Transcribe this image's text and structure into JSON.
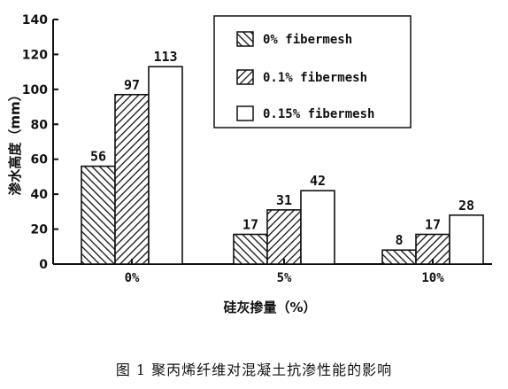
{
  "chart_data": {
    "type": "bar",
    "categories": [
      "0%",
      "5%",
      "10%"
    ],
    "series": [
      {
        "name": "0% fibermesh",
        "values": [
          56,
          17,
          8
        ],
        "pattern": "back-hatch"
      },
      {
        "name": "0.1% fibermesh",
        "values": [
          97,
          31,
          17
        ],
        "pattern": "forward-hatch"
      },
      {
        "name": "0.15% fibermesh",
        "values": [
          113,
          42,
          28
        ],
        "pattern": "blank"
      }
    ],
    "data_labels": [
      [
        "56",
        "17",
        "8"
      ],
      [
        "97",
        "31",
        "17"
      ],
      [
        "113",
        "42",
        "28"
      ]
    ],
    "xlabel": "硅灰掺量（%）",
    "ylabel": "渗水高度（mm）",
    "ylim": [
      0,
      140
    ],
    "yticks": [
      0,
      20,
      40,
      60,
      80,
      100,
      120,
      140
    ],
    "grid": false,
    "legend_position": "top-right",
    "bar_color": "#111111"
  },
  "caption": "图 1   聚丙烯纤维对混凝土抗渗性能的影响"
}
